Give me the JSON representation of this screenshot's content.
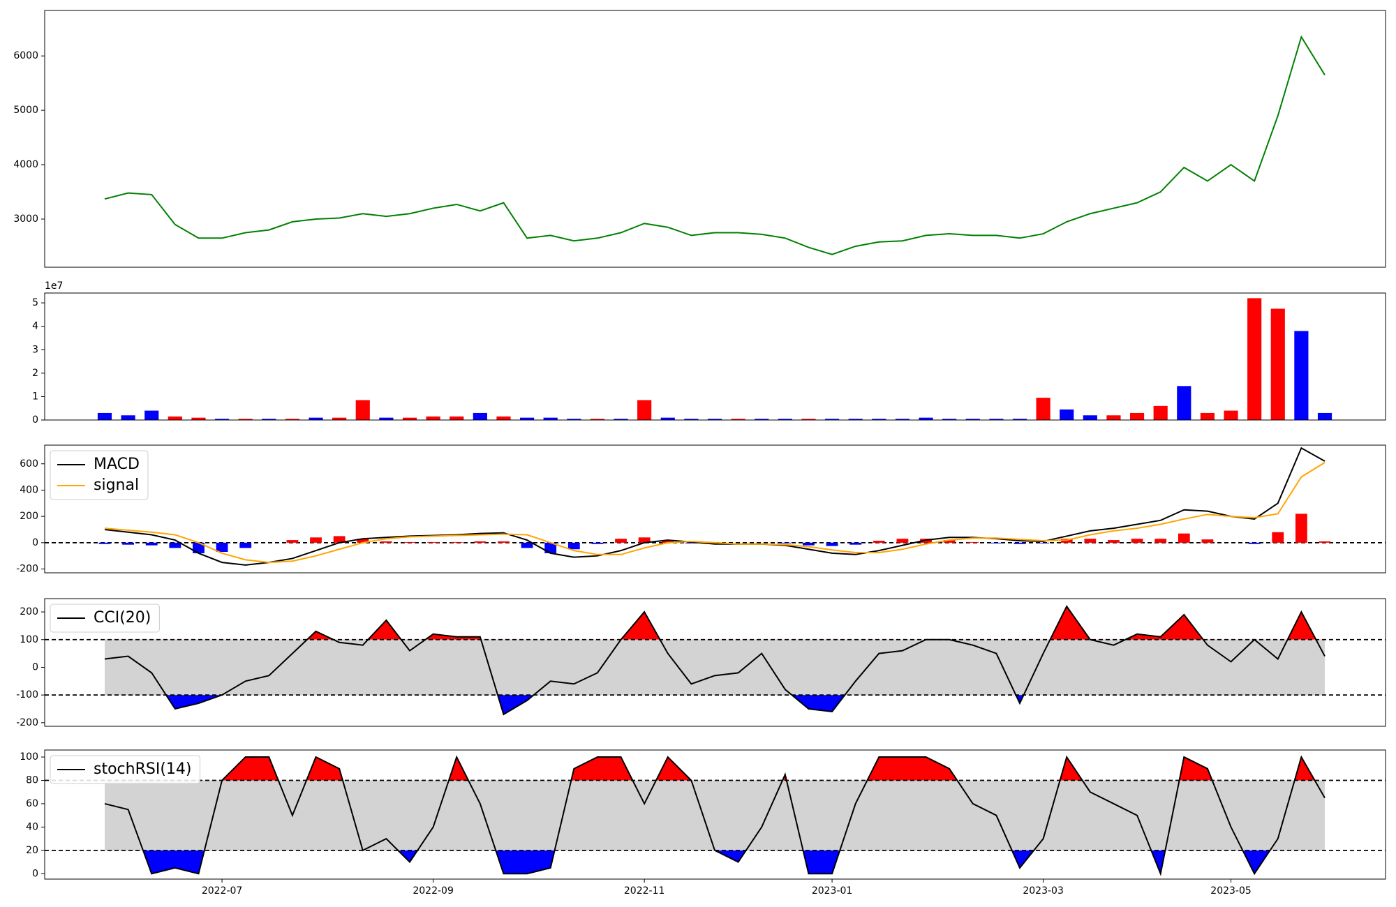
{
  "chart_data": [
    {
      "type": "line",
      "color": "green",
      "values": [
        3370,
        3480,
        3450,
        2900,
        2650,
        2650,
        2750,
        2800,
        2950,
        3000,
        3020,
        3100,
        3050,
        3100,
        3200,
        3270,
        3150,
        3300,
        2650,
        2700,
        2600,
        2650,
        2750,
        2920,
        2850,
        2700,
        2750,
        2750,
        2720,
        2650,
        2480,
        2350,
        2500,
        2580,
        2600,
        2700,
        2730,
        2700,
        2700,
        2650,
        2730,
        2950,
        3100,
        3200,
        3300,
        3500,
        3950,
        3700,
        4000,
        3700,
        4900,
        6350,
        5650
      ],
      "ylim": [
        2115,
        6836
      ],
      "yticks": [
        3000,
        4000,
        5000,
        6000
      ]
    },
    {
      "type": "bar",
      "offset_label": "1e7",
      "values": [
        0.3,
        0.2,
        0.4,
        0.15,
        0.1,
        0.05,
        0.05,
        0.05,
        0.05,
        0.1,
        0.1,
        0.85,
        0.1,
        0.1,
        0.15,
        0.15,
        0.3,
        0.15,
        0.1,
        0.1,
        0.05,
        0.05,
        0.05,
        0.85,
        0.1,
        0.05,
        0.05,
        0.05,
        0.05,
        0.05,
        0.05,
        0.05,
        0.05,
        0.05,
        0.05,
        0.1,
        0.05,
        0.05,
        0.05,
        0.05,
        0.95,
        0.45,
        0.2,
        0.2,
        0.3,
        0.6,
        1.45,
        0.3,
        0.4,
        5.2,
        4.75,
        3.8,
        0.3
      ],
      "colors": [
        "blue",
        "blue",
        "blue",
        "red",
        "red",
        "blue",
        "red",
        "blue",
        "red",
        "blue",
        "red",
        "red",
        "blue",
        "red",
        "red",
        "red",
        "blue",
        "red",
        "blue",
        "blue",
        "blue",
        "red",
        "blue",
        "red",
        "blue",
        "blue",
        "blue",
        "red",
        "blue",
        "blue",
        "red",
        "blue",
        "blue",
        "blue",
        "blue",
        "blue",
        "blue",
        "blue",
        "blue",
        "blue",
        "red",
        "blue",
        "blue",
        "red",
        "red",
        "red",
        "blue",
        "red",
        "red",
        "red",
        "red",
        "blue",
        "blue"
      ],
      "ylim": [
        0,
        5.42
      ],
      "yticks": [
        0,
        1,
        2,
        3,
        4,
        5
      ]
    },
    {
      "type": "line",
      "legend": "upper left",
      "hlines": [
        0
      ],
      "series": [
        {
          "name": "MACD",
          "color": "black",
          "values": [
            100,
            80,
            60,
            20,
            -80,
            -150,
            -170,
            -150,
            -120,
            -60,
            0,
            30,
            40,
            50,
            55,
            60,
            70,
            75,
            20,
            -80,
            -110,
            -100,
            -60,
            0,
            20,
            5,
            -10,
            -10,
            -10,
            -20,
            -50,
            -80,
            -90,
            -60,
            -20,
            20,
            40,
            40,
            30,
            15,
            10,
            50,
            90,
            110,
            140,
            170,
            250,
            240,
            200,
            180,
            300,
            720,
            620
          ]
        },
        {
          "name": "signal",
          "color": "orange",
          "values": [
            110,
            95,
            80,
            60,
            0,
            -80,
            -130,
            -150,
            -140,
            -100,
            -50,
            0,
            30,
            45,
            50,
            55,
            60,
            65,
            60,
            0,
            -60,
            -90,
            -90,
            -40,
            0,
            10,
            0,
            -10,
            -10,
            -15,
            -30,
            -55,
            -75,
            -75,
            -50,
            -10,
            20,
            35,
            35,
            25,
            15,
            20,
            60,
            90,
            110,
            140,
            180,
            215,
            200,
            190,
            220,
            500,
            610
          ]
        }
      ],
      "histogram": {
        "up_color": "red",
        "down_color": "blue",
        "values": [
          -10,
          -15,
          -20,
          -40,
          -80,
          -70,
          -40,
          0,
          20,
          40,
          50,
          30,
          10,
          5,
          5,
          5,
          10,
          10,
          -40,
          -80,
          -50,
          -10,
          30,
          40,
          20,
          -5,
          -10,
          0,
          0,
          -5,
          -20,
          -25,
          -15,
          15,
          30,
          30,
          20,
          5,
          -5,
          -10,
          -5,
          30,
          30,
          20,
          30,
          30,
          70,
          25,
          0,
          -10,
          80,
          220,
          10
        ]
      },
      "ylim": [
        -229,
        742
      ],
      "yticks": [
        -200,
        0,
        200,
        400,
        600
      ]
    },
    {
      "type": "line",
      "legend": "upper left",
      "band": [
        -100,
        100
      ],
      "band_color": "lightgray",
      "above_color": "red",
      "below_color": "blue",
      "series": [
        {
          "name": "CCI(20)",
          "color": "black",
          "values": [
            30,
            40,
            -20,
            -150,
            -130,
            -100,
            -50,
            -30,
            50,
            130,
            90,
            80,
            170,
            60,
            120,
            110,
            110,
            -170,
            -120,
            -50,
            -60,
            -20,
            100,
            200,
            50,
            -60,
            -30,
            -20,
            50,
            -80,
            -150,
            -160,
            -50,
            50,
            60,
            100,
            100,
            80,
            50,
            -130,
            50,
            220,
            100,
            80,
            120,
            110,
            190,
            80,
            20,
            100,
            30,
            200,
            40
          ]
        }
      ],
      "ylim": [
        -213,
        248
      ],
      "yticks": [
        -200,
        -100,
        0,
        100,
        200
      ]
    },
    {
      "type": "line",
      "legend": "upper left",
      "band": [
        20,
        80
      ],
      "band_color": "lightgray",
      "above_color": "red",
      "below_color": "blue",
      "series": [
        {
          "name": "stochRSI(14)",
          "color": "black",
          "values": [
            60,
            55,
            0,
            5,
            0,
            80,
            100,
            100,
            50,
            100,
            90,
            20,
            30,
            10,
            40,
            100,
            60,
            0,
            0,
            5,
            90,
            100,
            100,
            60,
            100,
            80,
            20,
            10,
            40,
            85,
            0,
            0,
            60,
            100,
            100,
            100,
            90,
            60,
            50,
            5,
            30,
            100,
            70,
            60,
            50,
            0,
            100,
            90,
            40,
            0,
            30,
            100,
            65
          ]
        }
      ],
      "categories": [
        null,
        null,
        null,
        null,
        null,
        "2022-07",
        null,
        null,
        null,
        null,
        null,
        null,
        null,
        null,
        "2022-09",
        null,
        null,
        null,
        null,
        null,
        null,
        null,
        null,
        "2022-11",
        null,
        null,
        null,
        null,
        null,
        null,
        null,
        "2023-01",
        null,
        null,
        null,
        null,
        null,
        null,
        null,
        null,
        "2023-03",
        null,
        null,
        null,
        null,
        null,
        null,
        null,
        "2023-05",
        null,
        null,
        null,
        null
      ],
      "ylim": [
        -4.6,
        106
      ],
      "yticks": [
        0,
        20,
        40,
        60,
        80,
        100
      ]
    }
  ]
}
